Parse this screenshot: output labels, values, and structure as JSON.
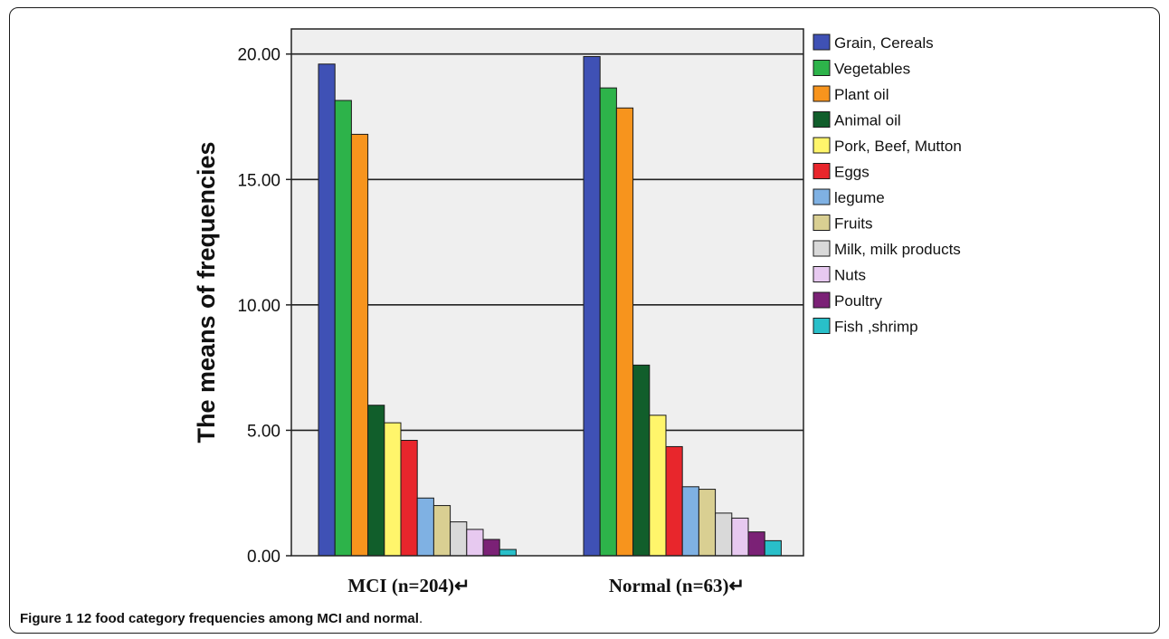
{
  "caption": {
    "label": "Figure 1",
    "text": "12 food category frequencies among MCI and normal",
    "period": "."
  },
  "chart_data": {
    "type": "bar",
    "title": "",
    "xlabel": "",
    "ylabel": "The means of frequencies",
    "ylim": [
      0,
      21
    ],
    "yticks": [
      "0.00",
      "5.00",
      "10.00",
      "15.00",
      "20.00"
    ],
    "grid": "horizontal",
    "legend_position": "right",
    "categories": [
      "MCI (n=204)↵",
      "Normal (n=63)↵"
    ],
    "series": [
      {
        "name": "Grain, Cereals",
        "color": "#3f51b5",
        "values": [
          19.6,
          19.9
        ]
      },
      {
        "name": "Vegetables",
        "color": "#2db34a",
        "values": [
          18.15,
          18.65
        ]
      },
      {
        "name": "Plant  oil",
        "color": "#f7941d",
        "values": [
          16.8,
          17.85
        ]
      },
      {
        "name": "Animal oil",
        "color": "#115e2b",
        "values": [
          6.0,
          7.6
        ]
      },
      {
        "name": "Pork, Beef, Mutton",
        "color": "#fff56b",
        "values": [
          5.3,
          5.6
        ]
      },
      {
        "name": "Eggs",
        "color": "#e8262c",
        "values": [
          4.6,
          4.35
        ]
      },
      {
        "name": "legume",
        "color": "#7fb1e3",
        "values": [
          2.3,
          2.75
        ]
      },
      {
        "name": "Fruits",
        "color": "#d9cf92",
        "values": [
          2.0,
          2.65
        ]
      },
      {
        "name": "Milk, milk products",
        "color": "#d9d9d9",
        "values": [
          1.35,
          1.7
        ]
      },
      {
        "name": "Nuts",
        "color": "#e7c9f0",
        "values": [
          1.05,
          1.5
        ]
      },
      {
        "name": "Poultry",
        "color": "#7b2176",
        "values": [
          0.65,
          0.95
        ]
      },
      {
        "name": "Fish ,shrimp",
        "color": "#29bfc9",
        "values": [
          0.25,
          0.6
        ]
      }
    ]
  }
}
